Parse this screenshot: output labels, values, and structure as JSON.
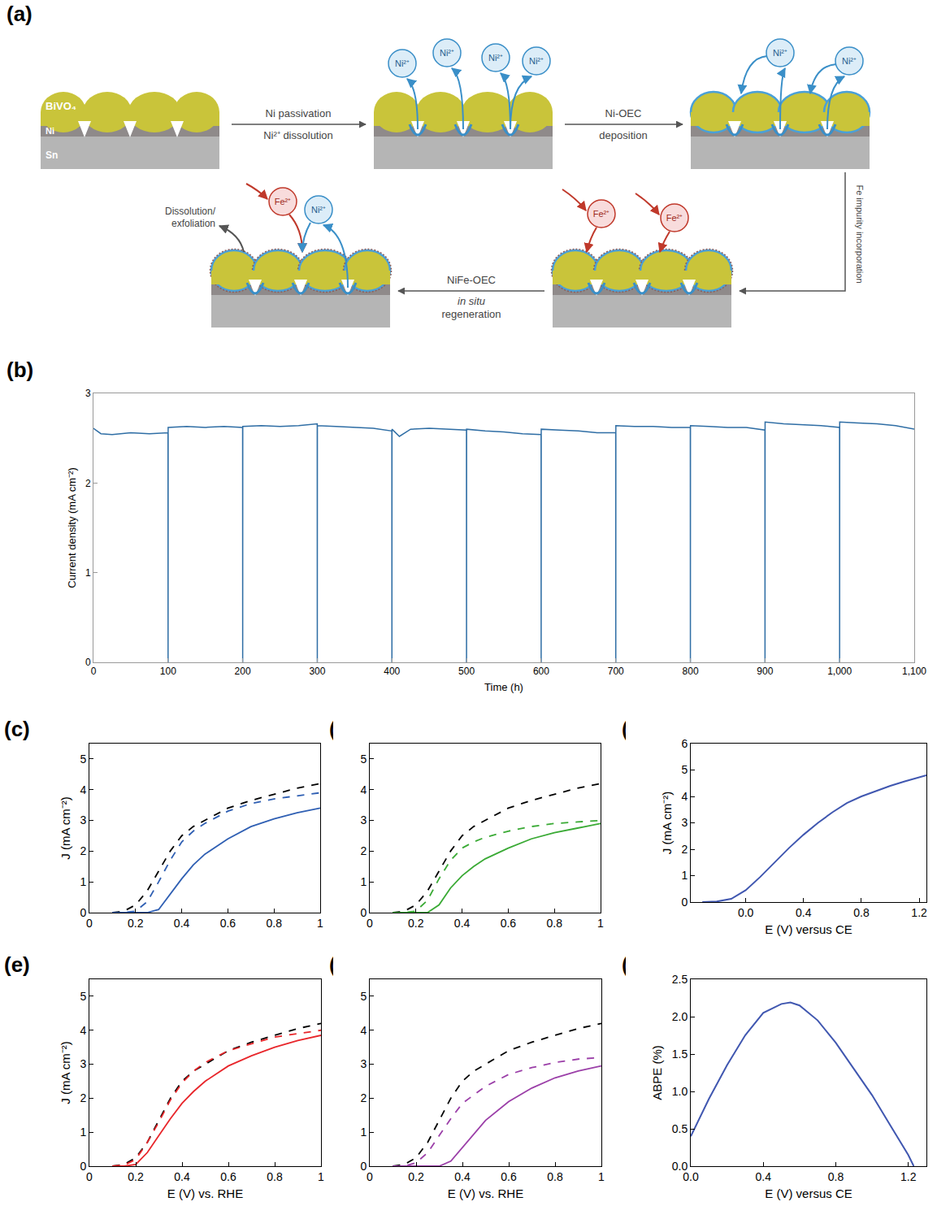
{
  "diagram": {
    "panel": "(a)",
    "layer_labels": [
      "BiVO₄",
      "Ni",
      "Sn"
    ],
    "stages": [
      {
        "ions": []
      },
      {
        "ions": [
          "Ni²⁺",
          "Ni²⁺",
          "Ni²⁺",
          "Ni²⁺"
        ]
      },
      {
        "ions": [
          "Ni²⁺",
          "Ni²⁺"
        ]
      },
      {
        "ions": [
          "Fe²⁺",
          "Fe²⁺"
        ]
      },
      {
        "ions": [
          "Fe²⁺",
          "Ni²⁺"
        ],
        "note": [
          "Dissolution/",
          "exfoliation"
        ]
      }
    ],
    "transitions": [
      [
        "Ni passivation",
        "Ni²⁺ dissolution"
      ],
      [
        "Ni-OEC",
        "deposition"
      ],
      [
        "Fe impurity incorporation"
      ],
      [
        "NiFe-OEC",
        "in situ",
        "regeneration"
      ]
    ]
  },
  "chart_data": [
    {
      "panel": "(b)",
      "type": "line",
      "x": [
        0,
        10,
        25,
        50,
        75,
        99.9,
        100,
        100.1,
        125,
        150,
        175,
        199.9,
        200,
        200.1,
        225,
        250,
        275,
        299.9,
        300,
        300.1,
        325,
        350,
        375,
        399.9,
        400,
        400.1,
        410,
        425,
        450,
        475,
        499.9,
        500,
        500.1,
        525,
        550,
        575,
        599.9,
        600,
        600.1,
        625,
        650,
        675,
        699.9,
        700,
        700.1,
        725,
        750,
        775,
        799.9,
        800,
        800.1,
        825,
        850,
        875,
        899.9,
        900,
        900.1,
        925,
        950,
        975,
        999.9,
        1000,
        1000.1,
        1025,
        1050,
        1075,
        1100
      ],
      "series": [
        {
          "color": "#2f6ea5",
          "line_style": "solid",
          "values": [
            2.61,
            2.55,
            2.54,
            2.56,
            2.55,
            2.56,
            0,
            2.62,
            2.63,
            2.62,
            2.63,
            2.62,
            0,
            2.63,
            2.64,
            2.63,
            2.64,
            2.66,
            0,
            2.64,
            2.63,
            2.62,
            2.61,
            2.58,
            0,
            2.6,
            2.52,
            2.6,
            2.61,
            2.6,
            2.59,
            0,
            2.6,
            2.58,
            2.57,
            2.55,
            2.54,
            0,
            2.6,
            2.59,
            2.58,
            2.56,
            2.56,
            0,
            2.64,
            2.63,
            2.63,
            2.62,
            2.62,
            0,
            2.64,
            2.63,
            2.62,
            2.62,
            2.59,
            0,
            2.68,
            2.66,
            2.65,
            2.64,
            2.62,
            0,
            2.68,
            2.67,
            2.66,
            2.64,
            2.6
          ]
        }
      ],
      "xlim": [
        0,
        1100
      ],
      "xticks": [
        0,
        100,
        200,
        300,
        400,
        500,
        600,
        700,
        800,
        900,
        {
          "value": 1000,
          "label": "1,000"
        },
        {
          "value": 1100,
          "label": "1,100"
        }
      ],
      "ylim": [
        0,
        3
      ],
      "yticks": [
        0,
        1,
        2,
        3
      ],
      "x_label": "Time (h)",
      "y_label": "Current density (mA cm⁻²)",
      "grid": false
    },
    {
      "panel": "(c)",
      "type": "line",
      "x": [
        0.1,
        0.15,
        0.2,
        0.25,
        0.3,
        0.35,
        0.4,
        0.45,
        0.5,
        0.6,
        0.7,
        0.8,
        0.9,
        1.0
      ],
      "series": [
        {
          "color": "#000000",
          "line_style": "dashed",
          "values": [
            0,
            0.05,
            0.25,
            0.7,
            1.35,
            2.0,
            2.5,
            2.8,
            3.0,
            3.4,
            3.65,
            3.85,
            4.05,
            4.2
          ]
        },
        {
          "color": "#2f5fb3",
          "line_style": "dashed",
          "values": [
            0,
            0,
            0.05,
            0.35,
            1.0,
            1.7,
            2.3,
            2.65,
            2.9,
            3.3,
            3.55,
            3.7,
            3.8,
            3.9
          ]
        },
        {
          "color": "#2f5fb3",
          "line_style": "solid",
          "values": [
            0,
            0,
            0,
            0,
            0.1,
            0.6,
            1.1,
            1.55,
            1.9,
            2.4,
            2.8,
            3.05,
            3.25,
            3.4
          ]
        }
      ],
      "xlim": [
        0,
        1
      ],
      "xticks": [
        0,
        0.2,
        0.4,
        0.6,
        0.8,
        1
      ],
      "ylim": [
        0,
        5.5
      ],
      "yticks": [
        0,
        1,
        2,
        3,
        4,
        5
      ],
      "y_label": "J (mA cm⁻²)",
      "grid": false
    },
    {
      "panel": "(d)",
      "type": "line",
      "x": [
        0.1,
        0.15,
        0.2,
        0.25,
        0.3,
        0.35,
        0.4,
        0.45,
        0.5,
        0.6,
        0.7,
        0.8,
        0.9,
        1.0
      ],
      "series": [
        {
          "color": "#000000",
          "line_style": "dashed",
          "values": [
            0,
            0.05,
            0.25,
            0.7,
            1.35,
            2.0,
            2.5,
            2.8,
            3.0,
            3.4,
            3.65,
            3.85,
            4.05,
            4.2
          ]
        },
        {
          "color": "#3aaa35",
          "line_style": "dashed",
          "values": [
            0,
            0,
            0.05,
            0.4,
            1.1,
            1.7,
            2.1,
            2.3,
            2.45,
            2.65,
            2.8,
            2.9,
            2.95,
            3.0
          ]
        },
        {
          "color": "#3aaa35",
          "line_style": "solid",
          "values": [
            0,
            0,
            0,
            0,
            0.25,
            0.8,
            1.2,
            1.5,
            1.75,
            2.1,
            2.4,
            2.6,
            2.75,
            2.9
          ]
        }
      ],
      "xlim": [
        0,
        1
      ],
      "xticks": [
        0,
        0.2,
        0.4,
        0.6,
        0.8,
        1
      ],
      "ylim": [
        0,
        5.5
      ],
      "yticks": [
        0,
        1,
        2,
        3,
        4,
        5
      ],
      "grid": false
    },
    {
      "panel": "(e)",
      "type": "line",
      "x": [
        0.1,
        0.15,
        0.2,
        0.25,
        0.3,
        0.35,
        0.4,
        0.45,
        0.5,
        0.6,
        0.7,
        0.8,
        0.9,
        1.0
      ],
      "series": [
        {
          "color": "#000000",
          "line_style": "dashed",
          "values": [
            0,
            0.05,
            0.25,
            0.7,
            1.35,
            2.0,
            2.5,
            2.8,
            3.0,
            3.4,
            3.65,
            3.85,
            4.05,
            4.2
          ]
        },
        {
          "color": "#e8262b",
          "line_style": "dashed",
          "values": [
            0,
            0.03,
            0.2,
            0.7,
            1.3,
            1.95,
            2.45,
            2.8,
            3.05,
            3.4,
            3.6,
            3.8,
            3.9,
            4.0
          ]
        },
        {
          "color": "#e8262b",
          "line_style": "solid",
          "values": [
            0,
            0,
            0.05,
            0.4,
            0.9,
            1.4,
            1.85,
            2.2,
            2.5,
            2.95,
            3.25,
            3.5,
            3.7,
            3.85
          ]
        }
      ],
      "xlim": [
        0,
        1
      ],
      "xticks": [
        0,
        0.2,
        0.4,
        0.6,
        0.8,
        1
      ],
      "ylim": [
        0,
        5.5
      ],
      "yticks": [
        0,
        1,
        2,
        3,
        4,
        5
      ],
      "x_label": "E (V) vs. RHE",
      "y_label": "J (mA cm⁻²)",
      "grid": false
    },
    {
      "panel": "(f)",
      "type": "line",
      "x": [
        0.1,
        0.15,
        0.2,
        0.25,
        0.3,
        0.35,
        0.4,
        0.45,
        0.5,
        0.6,
        0.7,
        0.8,
        0.9,
        1.0
      ],
      "series": [
        {
          "color": "#000000",
          "line_style": "dashed",
          "values": [
            0,
            0.05,
            0.25,
            0.7,
            1.35,
            2.0,
            2.5,
            2.8,
            3.0,
            3.4,
            3.65,
            3.85,
            4.05,
            4.2
          ]
        },
        {
          "color": "#9b3fa8",
          "line_style": "dashed",
          "values": [
            0,
            0,
            0.1,
            0.4,
            0.9,
            1.4,
            1.85,
            2.1,
            2.35,
            2.7,
            2.9,
            3.05,
            3.15,
            3.2
          ]
        },
        {
          "color": "#9b3fa8",
          "line_style": "solid",
          "values": [
            0,
            0,
            0,
            0,
            0,
            0.15,
            0.55,
            0.95,
            1.35,
            1.9,
            2.3,
            2.6,
            2.8,
            2.95
          ]
        }
      ],
      "xlim": [
        0,
        1
      ],
      "xticks": [
        0,
        0.2,
        0.4,
        0.6,
        0.8,
        1
      ],
      "ylim": [
        0,
        5.5
      ],
      "yticks": [
        0,
        1,
        2,
        3,
        4,
        5
      ],
      "x_label": "E (V) vs. RHE",
      "grid": false
    },
    {
      "panel": "(g)",
      "type": "line",
      "x": [
        -0.3,
        -0.2,
        -0.1,
        0,
        0.1,
        0.2,
        0.3,
        0.4,
        0.5,
        0.6,
        0.7,
        0.8,
        0.9,
        1.0,
        1.1,
        1.2,
        1.25
      ],
      "series": [
        {
          "color": "#4057b0",
          "line_style": "solid",
          "values": [
            0,
            0.02,
            0.12,
            0.45,
            0.95,
            1.5,
            2.05,
            2.55,
            3.0,
            3.4,
            3.75,
            4.0,
            4.2,
            4.4,
            4.57,
            4.72,
            4.8
          ]
        }
      ],
      "xlim": [
        -0.38,
        1.25
      ],
      "xticks": [
        {
          "value": 0,
          "label": "0.0"
        },
        0.4,
        0.8,
        1.2
      ],
      "ylim": [
        0,
        6
      ],
      "yticks": [
        0,
        1,
        2,
        3,
        4,
        5,
        6
      ],
      "x_label": "E (V) versus CE",
      "y_label": "J (mA cm⁻²)",
      "grid": false
    },
    {
      "panel": "(h)",
      "type": "line",
      "x": [
        0,
        0.1,
        0.2,
        0.3,
        0.4,
        0.5,
        0.55,
        0.6,
        0.7,
        0.8,
        0.9,
        1.0,
        1.1,
        1.2,
        1.23
      ],
      "series": [
        {
          "color": "#4057b0",
          "line_style": "solid",
          "values": [
            0.4,
            0.9,
            1.35,
            1.75,
            2.05,
            2.17,
            2.19,
            2.15,
            1.95,
            1.65,
            1.3,
            0.95,
            0.55,
            0.15,
            0
          ]
        }
      ],
      "xlim": [
        0,
        1.3
      ],
      "xticks": [
        {
          "value": 0,
          "label": "0.0"
        },
        0.4,
        0.8,
        1.2
      ],
      "ylim": [
        0,
        2.5
      ],
      "yticks": [
        {
          "value": 0,
          "label": "0.0"
        },
        0.5,
        {
          "value": 1,
          "label": "1.0"
        },
        1.5,
        {
          "value": 2,
          "label": "2.0"
        },
        2.5
      ],
      "x_label": "E (V) versus CE",
      "y_label": "ABPE (%)",
      "grid": false
    }
  ]
}
